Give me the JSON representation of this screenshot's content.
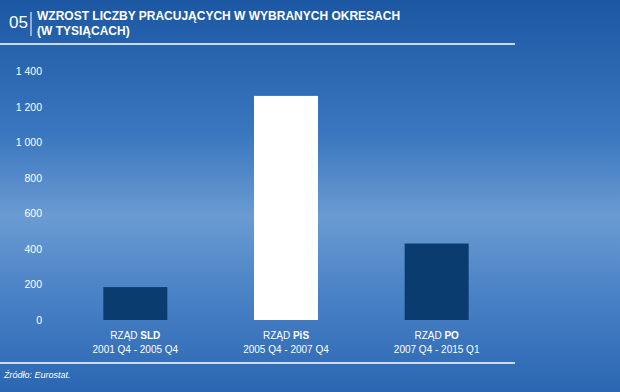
{
  "chart_data": {
    "type": "bar",
    "figure_label": "05",
    "title": "WZROST LICZBY PRACUJĄCYCH W WYBRANYCH OKRESACH\n(W TYSIĄCACH)",
    "categories": [
      "RZĄD SLD",
      "RZĄD PiS",
      "RZĄD PO"
    ],
    "periods": [
      "2001 Q4 - 2005 Q4",
      "2005 Q4 - 2007 Q4",
      "2007 Q4 - 2015 Q1"
    ],
    "values": [
      185,
      1260,
      430
    ],
    "colors": [
      "#0b3c70",
      "#ffffff",
      "#0b3c70"
    ],
    "ylim": [
      0,
      1400
    ],
    "yticks": [
      0,
      200,
      400,
      600,
      800,
      {
        "value": 1000,
        "label": "1 000"
      },
      {
        "value": 1200,
        "label": "1 200"
      },
      {
        "value": 1400,
        "label": "1 400"
      }
    ],
    "grid": false,
    "source": "Źródło: Eurostat."
  }
}
